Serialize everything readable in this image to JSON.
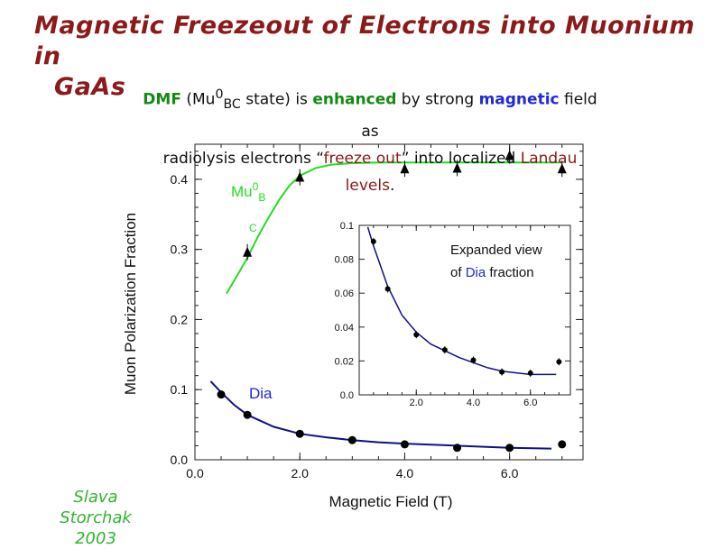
{
  "title": {
    "line1": "Magnetic Freezeout of Electrons into Muonium in",
    "line2": "GaAs"
  },
  "subtitle": {
    "p1": "DMF",
    "p2": " (Mu",
    "p3": "0",
    "p4": "BC",
    "p5": " state) is ",
    "p6": "enhanced",
    "p7": " by strong ",
    "p8": "magnetic",
    "p9": " field",
    "p10": "as",
    "p11": "radiolysis electrons “",
    "p12": "freeze out",
    "p13": "” into localized ",
    "p14": "Landau",
    "p15": "levels",
    "p16": "."
  },
  "author": {
    "line1": "Slava",
    "line2": "Storchak",
    "line3": "2003"
  },
  "colors": {
    "title": "#8b1a1a",
    "mu_curve": "#22dd22",
    "dia_curve": "#10108a",
    "label_blue": "#1c2bd6",
    "author": "#2fb52f"
  },
  "chart_data": [
    {
      "type": "scatter",
      "xlabel": "Magnetic Field (T)",
      "ylabel": "Muon Polarization Fraction",
      "xlim": [
        0,
        7.4
      ],
      "ylim": [
        0,
        0.45
      ],
      "xticks": [
        "0.0",
        "2.0",
        "4.0",
        "6.0"
      ],
      "xtick_values": [
        0,
        2,
        4,
        6
      ],
      "yticks": [
        "0.0",
        "0.1",
        "0.2",
        "0.3",
        "0.4"
      ],
      "ytick_values": [
        0,
        0.1,
        0.2,
        0.3,
        0.4
      ],
      "grid": false,
      "labels": {
        "mu_main": "Mu",
        "mu_sup": "0",
        "mu_sub": "B",
        "mu_c": "C",
        "dia": "Dia"
      },
      "series": [
        {
          "marker": "triangle",
          "x": [
            1.0,
            2.0,
            4.0,
            5.0,
            6.0,
            7.0
          ],
          "y": [
            0.296,
            0.403,
            0.415,
            0.416,
            0.434,
            0.415
          ]
        },
        {
          "marker": "circle",
          "x": [
            0.5,
            1.0,
            2.0,
            3.0,
            4.0,
            5.0,
            6.0,
            7.0
          ],
          "y": [
            0.093,
            0.064,
            0.037,
            0.028,
            0.022,
            0.017,
            0.017,
            0.022
          ]
        }
      ],
      "fits": [
        {
          "x": [
            0.6,
            0.8,
            1.0,
            1.2,
            1.4,
            1.6,
            1.8,
            2.0,
            2.3,
            2.6,
            3.0,
            3.5,
            4.0,
            5.0,
            6.0,
            7.0
          ],
          "y": [
            0.237,
            0.262,
            0.288,
            0.318,
            0.345,
            0.37,
            0.391,
            0.405,
            0.416,
            0.421,
            0.423,
            0.424,
            0.424,
            0.424,
            0.424,
            0.424
          ]
        },
        {
          "x": [
            0.3,
            0.5,
            0.75,
            1.0,
            1.5,
            2.0,
            2.5,
            3.0,
            3.5,
            4.0,
            5.0,
            6.0,
            6.8
          ],
          "y": [
            0.112,
            0.096,
            0.078,
            0.064,
            0.047,
            0.037,
            0.032,
            0.028,
            0.025,
            0.023,
            0.02,
            0.017,
            0.016
          ]
        }
      ]
    },
    {
      "type": "scatter",
      "title": "",
      "xlim": [
        0,
        7.4
      ],
      "ylim": [
        0,
        0.1
      ],
      "xticks": [
        "2.0",
        "4.0",
        "6.0"
      ],
      "xtick_values": [
        2,
        4,
        6
      ],
      "yticks": [
        "0.0",
        "0.02",
        "0.04",
        "0.06",
        "0.08",
        "0.1"
      ],
      "ytick_values": [
        0,
        0.02,
        0.04,
        0.06,
        0.08,
        0.1
      ],
      "annotation": {
        "line1": "Expanded view",
        "line2a": "of ",
        "line2b": "Dia",
        "line2c": " fraction"
      },
      "series": [
        {
          "marker": "circle",
          "x": [
            0.5,
            1.0,
            2.0,
            3.0,
            4.0,
            5.0,
            6.0,
            7.0
          ],
          "y": [
            0.0905,
            0.0625,
            0.0355,
            0.0265,
            0.0205,
            0.0135,
            0.0128,
            0.0195
          ]
        }
      ],
      "fits": [
        {
          "x": [
            0.3,
            0.5,
            0.75,
            1.0,
            1.5,
            2.0,
            2.5,
            3.0,
            3.5,
            4.0,
            4.5,
            5.0,
            5.5,
            6.0,
            6.5,
            6.9
          ],
          "y": [
            0.099,
            0.088,
            0.076,
            0.064,
            0.047,
            0.037,
            0.03,
            0.026,
            0.022,
            0.019,
            0.016,
            0.014,
            0.013,
            0.012,
            0.012,
            0.012
          ]
        }
      ]
    }
  ]
}
